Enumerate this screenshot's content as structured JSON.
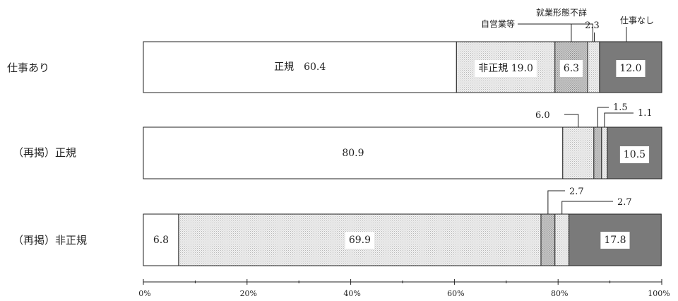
{
  "chart_data": {
    "type": "bar",
    "orientation": "horizontal",
    "stacked": true,
    "xlim": [
      0,
      100
    ],
    "x_tick_labels": [
      "0%",
      "20%",
      "40%",
      "60%",
      "80%",
      "100%"
    ],
    "categories": [
      "仕事あり",
      "（再掲）正規",
      "（再掲）非正規"
    ],
    "series": [
      {
        "name": "正規",
        "values": [
          60.4,
          80.9,
          6.8
        ]
      },
      {
        "name": "非正規",
        "values": [
          19.0,
          6.0,
          69.9
        ]
      },
      {
        "name": "自営業等",
        "values": [
          6.3,
          1.5,
          2.7
        ]
      },
      {
        "name": "就業形態不詳",
        "values": [
          2.3,
          1.1,
          2.7
        ]
      },
      {
        "name": "仕事なし",
        "values": [
          12.0,
          10.5,
          17.8
        ]
      }
    ],
    "colors": {
      "正規": "#ffffff",
      "非正規": "#e3e3e3",
      "自営業等": "#c9c9c9",
      "就業形態不詳": "#dcdcdc",
      "仕事なし": "#7a7a7a"
    },
    "segment_labels": [
      [
        "正規　60.4",
        "非正規 19.0",
        "6.3",
        "2.3",
        "12.0"
      ],
      [
        "80.9",
        "6.0",
        "1.5",
        "1.1",
        "10.5"
      ],
      [
        "6.8",
        "69.9",
        "2.7",
        "2.7",
        "17.8"
      ]
    ],
    "legend_callouts": [
      "自営業等",
      "就業形態不詳",
      "仕事なし"
    ]
  }
}
